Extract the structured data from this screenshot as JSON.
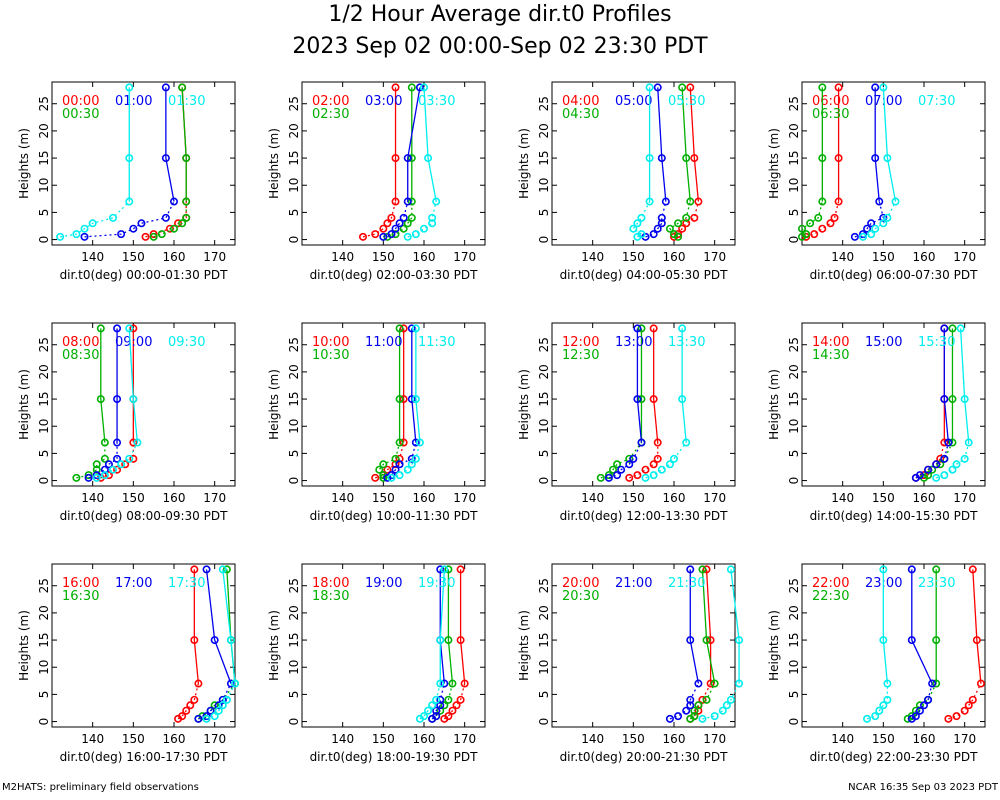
{
  "title_line1": "1/2 Hour Average dir.t0 Profiles",
  "title_line2": "2023 Sep 02 00:00-Sep 02 23:30 PDT",
  "footer_left": "M2HATS: preliminary field observations",
  "footer_right": "NCAR 16:35 Sep 03 2023 PDT",
  "colors": {
    "red": "#ff0000",
    "blue": "#0000ee",
    "green": "#00b000",
    "cyan": "#00eeee"
  },
  "chart_data": [
    {
      "type": "line",
      "xlabel": "dir.t0(deg) 00:00-01:30 PDT",
      "ylabel": "Heights (m)",
      "xlim": [
        130,
        175
      ],
      "ylim": [
        -1,
        29
      ],
      "xticks": [
        140,
        150,
        160,
        170
      ],
      "yticks": [
        0,
        5,
        10,
        15,
        20,
        25
      ],
      "heights": [
        0.5,
        1,
        2,
        3,
        4,
        7,
        15,
        28
      ],
      "series": [
        {
          "name": "00:00",
          "color": "red",
          "values": [
            153,
            155,
            159,
            161,
            163,
            163,
            163,
            162
          ]
        },
        {
          "name": "00:30",
          "color": "green",
          "values": [
            155,
            157,
            160,
            162,
            163,
            163,
            163,
            162
          ]
        },
        {
          "name": "01:00",
          "color": "blue",
          "values": [
            138,
            147,
            150,
            152,
            158,
            160,
            158,
            158
          ]
        },
        {
          "name": "01:30",
          "color": "cyan",
          "values": [
            132,
            136,
            138,
            140,
            145,
            149,
            149,
            149
          ]
        }
      ]
    },
    {
      "type": "line",
      "xlabel": "dir.t0(deg) 02:00-03:30 PDT",
      "ylabel": "Heights (m)",
      "xlim": [
        130,
        175
      ],
      "ylim": [
        -1,
        29
      ],
      "xticks": [
        140,
        150,
        160,
        170
      ],
      "yticks": [
        0,
        5,
        10,
        15,
        20,
        25
      ],
      "heights": [
        0.5,
        1,
        2,
        3,
        4,
        7,
        15,
        28
      ],
      "series": [
        {
          "name": "02:00",
          "color": "red",
          "values": [
            145,
            148,
            150,
            151,
            152,
            153,
            153,
            153
          ]
        },
        {
          "name": "02:30",
          "color": "green",
          "values": [
            151,
            153,
            155,
            156,
            157,
            157,
            157,
            157
          ]
        },
        {
          "name": "03:00",
          "color": "blue",
          "values": [
            150,
            152,
            153,
            154,
            155,
            156,
            156,
            159
          ]
        },
        {
          "name": "03:30",
          "color": "cyan",
          "values": [
            156,
            158,
            160,
            162,
            162,
            163,
            161,
            160
          ]
        }
      ]
    },
    {
      "type": "line",
      "xlabel": "dir.t0(deg) 04:00-05:30 PDT",
      "ylabel": "Heights (m)",
      "xlim": [
        130,
        175
      ],
      "ylim": [
        -1,
        29
      ],
      "xticks": [
        140,
        150,
        160,
        170
      ],
      "yticks": [
        0,
        5,
        10,
        15,
        20,
        25
      ],
      "heights": [
        0.5,
        1,
        2,
        3,
        4,
        7,
        15,
        28
      ],
      "series": [
        {
          "name": "04:00",
          "color": "red",
          "values": [
            160,
            161,
            162,
            163,
            165,
            166,
            165,
            164
          ]
        },
        {
          "name": "04:30",
          "color": "green",
          "values": [
            161,
            160,
            159,
            161,
            163,
            164,
            163,
            162
          ]
        },
        {
          "name": "05:00",
          "color": "blue",
          "values": [
            153,
            155,
            156,
            157,
            157,
            158,
            157,
            156
          ]
        },
        {
          "name": "05:30",
          "color": "cyan",
          "values": [
            151,
            152,
            150,
            151,
            152,
            154,
            154,
            154
          ]
        }
      ]
    },
    {
      "type": "line",
      "xlabel": "dir.t0(deg) 06:00-07:30 PDT",
      "ylabel": "Heights (m)",
      "xlim": [
        130,
        175
      ],
      "ylim": [
        -1,
        29
      ],
      "xticks": [
        140,
        150,
        160,
        170
      ],
      "yticks": [
        0,
        5,
        10,
        15,
        20,
        25
      ],
      "heights": [
        0.5,
        1,
        2,
        3,
        4,
        7,
        15,
        28
      ],
      "series": [
        {
          "name": "06:00",
          "color": "red",
          "values": [
            131,
            133,
            135,
            137,
            138,
            139,
            139,
            139
          ]
        },
        {
          "name": "06:30",
          "color": "green",
          "values": [
            130,
            131,
            130,
            132,
            134,
            135,
            135,
            135
          ]
        },
        {
          "name": "07:00",
          "color": "blue",
          "values": [
            143,
            145,
            146,
            147,
            150,
            149,
            148,
            148
          ]
        },
        {
          "name": "07:30",
          "color": "cyan",
          "values": [
            145,
            147,
            148,
            150,
            151,
            153,
            151,
            150
          ]
        }
      ]
    },
    {
      "type": "line",
      "xlabel": "dir.t0(deg) 08:00-09:30 PDT",
      "ylabel": "Heights (m)",
      "xlim": [
        130,
        175
      ],
      "ylim": [
        -1,
        29
      ],
      "xticks": [
        140,
        150,
        160,
        170
      ],
      "yticks": [
        0,
        5,
        10,
        15,
        20,
        25
      ],
      "heights": [
        0.5,
        1,
        2,
        3,
        4,
        7,
        15,
        28
      ],
      "series": [
        {
          "name": "08:00",
          "color": "red",
          "values": [
            142,
            144,
            146,
            148,
            150,
            150,
            150,
            150
          ]
        },
        {
          "name": "08:30",
          "color": "green",
          "values": [
            136,
            139,
            141,
            141,
            143,
            143,
            142,
            142
          ]
        },
        {
          "name": "09:00",
          "color": "blue",
          "values": [
            139,
            141,
            143,
            144,
            146,
            146,
            146,
            146
          ]
        },
        {
          "name": "09:30",
          "color": "cyan",
          "values": [
            141,
            143,
            145,
            147,
            149,
            151,
            150,
            149
          ]
        }
      ]
    },
    {
      "type": "line",
      "xlabel": "dir.t0(deg) 10:00-11:30 PDT",
      "ylabel": "Heights (m)",
      "xlim": [
        130,
        175
      ],
      "ylim": [
        -1,
        29
      ],
      "xticks": [
        140,
        150,
        160,
        170
      ],
      "yticks": [
        0,
        5,
        10,
        15,
        20,
        25
      ],
      "heights": [
        0.5,
        1,
        2,
        3,
        4,
        7,
        15,
        28
      ],
      "series": [
        {
          "name": "10:00",
          "color": "red",
          "values": [
            148,
            150,
            151,
            153,
            154,
            155,
            155,
            155
          ]
        },
        {
          "name": "10:30",
          "color": "green",
          "values": [
            150,
            150,
            149,
            150,
            153,
            154,
            154,
            154
          ]
        },
        {
          "name": "11:00",
          "color": "blue",
          "values": [
            151,
            152,
            153,
            154,
            157,
            158,
            157,
            157
          ]
        },
        {
          "name": "11:30",
          "color": "cyan",
          "values": [
            152,
            154,
            156,
            157,
            158,
            159,
            158,
            158
          ]
        }
      ]
    },
    {
      "type": "line",
      "xlabel": "dir.t0(deg) 12:00-13:30 PDT",
      "ylabel": "Heights (m)",
      "xlim": [
        130,
        175
      ],
      "ylim": [
        -1,
        29
      ],
      "xticks": [
        140,
        150,
        160,
        170
      ],
      "yticks": [
        0,
        5,
        10,
        15,
        20,
        25
      ],
      "heights": [
        0.5,
        1,
        2,
        3,
        4,
        7,
        15,
        28
      ],
      "series": [
        {
          "name": "12:00",
          "color": "red",
          "values": [
            149,
            151,
            153,
            155,
            156,
            156,
            155,
            155
          ]
        },
        {
          "name": "12:30",
          "color": "green",
          "values": [
            142,
            144,
            145,
            146,
            149,
            152,
            152,
            152
          ]
        },
        {
          "name": "13:00",
          "color": "blue",
          "values": [
            144,
            146,
            147,
            149,
            150,
            152,
            151,
            151
          ]
        },
        {
          "name": "13:30",
          "color": "cyan",
          "values": [
            153,
            155,
            157,
            159,
            160,
            163,
            162,
            162
          ]
        }
      ]
    },
    {
      "type": "line",
      "xlabel": "dir.t0(deg) 14:00-15:30 PDT",
      "ylabel": "Heights (m)",
      "xlim": [
        130,
        175
      ],
      "ylim": [
        -1,
        29
      ],
      "xticks": [
        140,
        150,
        160,
        170
      ],
      "yticks": [
        0,
        5,
        10,
        15,
        20,
        25
      ],
      "heights": [
        0.5,
        1,
        2,
        3,
        4,
        7,
        15,
        28
      ],
      "series": [
        {
          "name": "14:00",
          "color": "red",
          "values": [
            158,
            160,
            161,
            163,
            164,
            165,
            165,
            165
          ]
        },
        {
          "name": "14:30",
          "color": "green",
          "values": [
            160,
            161,
            162,
            164,
            165,
            167,
            167,
            167
          ]
        },
        {
          "name": "15:00",
          "color": "blue",
          "values": [
            158,
            159,
            161,
            163,
            165,
            166,
            165,
            165
          ]
        },
        {
          "name": "15:30",
          "color": "cyan",
          "values": [
            163,
            165,
            167,
            168,
            170,
            171,
            170,
            169
          ]
        }
      ]
    },
    {
      "type": "line",
      "xlabel": "dir.t0(deg) 16:00-17:30 PDT",
      "ylabel": "Heights (m)",
      "xlim": [
        130,
        175
      ],
      "ylim": [
        -1,
        29
      ],
      "xticks": [
        140,
        150,
        160,
        170
      ],
      "yticks": [
        0,
        5,
        10,
        15,
        20,
        25
      ],
      "heights": [
        0.5,
        1,
        2,
        3,
        4,
        7,
        15,
        28
      ],
      "series": [
        {
          "name": "16:00",
          "color": "red",
          "values": [
            161,
            162,
            163,
            164,
            165,
            166,
            165,
            165
          ]
        },
        {
          "name": "16:30",
          "color": "green",
          "values": [
            166,
            167,
            169,
            170,
            172,
            175,
            174,
            173
          ]
        },
        {
          "name": "17:00",
          "color": "blue",
          "values": [
            166,
            168,
            169,
            171,
            172,
            174,
            170,
            168
          ]
        },
        {
          "name": "17:30",
          "color": "cyan",
          "values": [
            168,
            170,
            171,
            172,
            173,
            175,
            174,
            172
          ]
        }
      ]
    },
    {
      "type": "line",
      "xlabel": "dir.t0(deg) 18:00-19:30 PDT",
      "ylabel": "Heights (m)",
      "xlim": [
        130,
        175
      ],
      "ylim": [
        -1,
        29
      ],
      "xticks": [
        140,
        150,
        160,
        170
      ],
      "yticks": [
        0,
        5,
        10,
        15,
        20,
        25
      ],
      "heights": [
        0.5,
        1,
        2,
        3,
        4,
        7,
        15,
        28
      ],
      "series": [
        {
          "name": "18:00",
          "color": "red",
          "values": [
            165,
            166,
            167,
            168,
            169,
            170,
            169,
            169
          ]
        },
        {
          "name": "18:30",
          "color": "green",
          "values": [
            162,
            163,
            164,
            165,
            166,
            167,
            166,
            166
          ]
        },
        {
          "name": "19:00",
          "color": "blue",
          "values": [
            162,
            163,
            163,
            164,
            164,
            165,
            164,
            164
          ]
        },
        {
          "name": "19:30",
          "color": "cyan",
          "values": [
            159,
            160,
            161,
            162,
            163,
            164,
            164,
            165
          ]
        }
      ]
    },
    {
      "type": "line",
      "xlabel": "dir.t0(deg) 20:00-21:30 PDT",
      "ylabel": "Heights (m)",
      "xlim": [
        130,
        175
      ],
      "ylim": [
        -1,
        29
      ],
      "xticks": [
        140,
        150,
        160,
        170
      ],
      "yticks": [
        0,
        5,
        10,
        15,
        20,
        25
      ],
      "heights": [
        0.5,
        1,
        2,
        3,
        4,
        7,
        15,
        28
      ],
      "series": [
        {
          "name": "20:00",
          "color": "red",
          "values": [
            164,
            165,
            166,
            166,
            167,
            169,
            169,
            168
          ]
        },
        {
          "name": "20:30",
          "color": "green",
          "values": [
            164,
            165,
            165,
            166,
            168,
            170,
            168,
            167
          ]
        },
        {
          "name": "21:00",
          "color": "blue",
          "values": [
            159,
            161,
            163,
            164,
            164,
            166,
            164,
            164
          ]
        },
        {
          "name": "21:30",
          "color": "cyan",
          "values": [
            167,
            170,
            172,
            173,
            174,
            176,
            176,
            174
          ]
        }
      ]
    },
    {
      "type": "line",
      "xlabel": "dir.t0(deg) 22:00-23:30 PDT",
      "ylabel": "Heights (m)",
      "xlim": [
        130,
        175
      ],
      "ylim": [
        -1,
        29
      ],
      "xticks": [
        140,
        150,
        160,
        170
      ],
      "yticks": [
        0,
        5,
        10,
        15,
        20,
        25
      ],
      "heights": [
        0.5,
        1,
        2,
        3,
        4,
        7,
        15,
        28
      ],
      "series": [
        {
          "name": "22:00",
          "color": "red",
          "values": [
            166,
            168,
            170,
            171,
            172,
            174,
            173,
            172
          ]
        },
        {
          "name": "22:30",
          "color": "green",
          "values": [
            156,
            157,
            158,
            159,
            161,
            163,
            163,
            163
          ]
        },
        {
          "name": "23:00",
          "color": "blue",
          "values": [
            157,
            158,
            159,
            160,
            161,
            162,
            157,
            157
          ]
        },
        {
          "name": "23:30",
          "color": "cyan",
          "values": [
            146,
            148,
            149,
            150,
            151,
            151,
            150,
            150
          ]
        }
      ]
    }
  ]
}
